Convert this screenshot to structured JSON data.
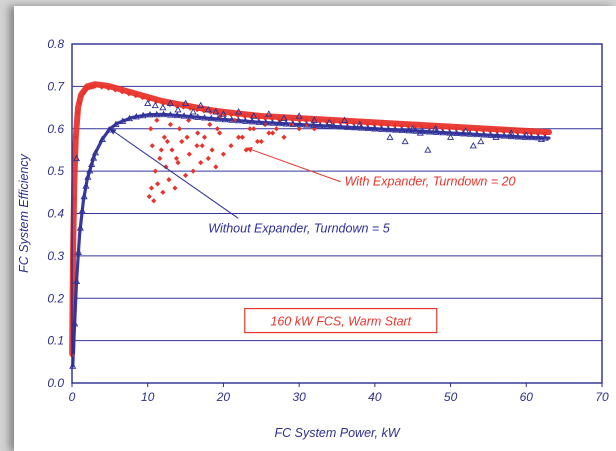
{
  "colors": {
    "plot_border": "#2b2b8f",
    "gridline": "#3434a0",
    "axis_text": "#2e2f8c",
    "with_expander": "#e8352c",
    "without_expander": "#2d2f96",
    "note_border": "#e8352c"
  },
  "chart_data": {
    "type": "scatter",
    "title": "",
    "xlabel": "FC System Power, kW",
    "ylabel": "FC System Efficiency",
    "xlim": [
      0,
      70
    ],
    "ylim": [
      0,
      0.8
    ],
    "xticks": [
      "0",
      "10",
      "20",
      "30",
      "40",
      "50",
      "60",
      "70"
    ],
    "yticks": [
      "0.0",
      "0.1",
      "0.2",
      "0.3",
      "0.4",
      "0.5",
      "0.6",
      "0.7",
      "0.8"
    ],
    "grid": "horizontal",
    "series": [
      {
        "name": "With Expander, Turndown = 20",
        "marker": "diamond",
        "color": "#e8352c",
        "curve": {
          "x": [
            0.02,
            0.08,
            0.15,
            0.3,
            0.5,
            0.8,
            1.2,
            2,
            3,
            4,
            5,
            6,
            8,
            10,
            12,
            15,
            18,
            20,
            25,
            30,
            35,
            40,
            45,
            50,
            55,
            60,
            63
          ],
          "y": [
            0.07,
            0.2,
            0.32,
            0.47,
            0.58,
            0.65,
            0.68,
            0.7,
            0.705,
            0.703,
            0.7,
            0.695,
            0.685,
            0.675,
            0.665,
            0.655,
            0.645,
            0.64,
            0.63,
            0.625,
            0.62,
            0.615,
            0.61,
            0.605,
            0.6,
            0.595,
            0.592
          ]
        },
        "scatter": {
          "x": [
            10.2,
            10.5,
            10.8,
            11,
            11.3,
            11.6,
            12,
            12.4,
            12.8,
            13.2,
            13.6,
            14,
            14.5,
            15,
            15.5,
            16,
            16.5,
            17,
            17.5,
            18,
            18.5,
            19,
            19.5,
            20,
            21,
            22,
            23,
            24,
            25,
            26,
            27,
            28,
            29,
            30,
            31,
            32,
            10.4,
            11.2,
            12.2,
            13,
            14.2,
            15.4,
            16.6,
            18.2,
            19.6,
            21.5,
            23.5,
            25.5,
            27.5,
            10.6,
            11.8,
            12.6,
            13.8,
            15.2,
            17.2,
            19.2,
            22.5,
            24.5,
            26.5
          ],
          "y": [
            0.44,
            0.46,
            0.43,
            0.5,
            0.47,
            0.53,
            0.45,
            0.51,
            0.48,
            0.55,
            0.46,
            0.52,
            0.57,
            0.49,
            0.54,
            0.5,
            0.56,
            0.52,
            0.58,
            0.53,
            0.55,
            0.51,
            0.59,
            0.54,
            0.56,
            0.58,
            0.55,
            0.6,
            0.57,
            0.59,
            0.6,
            0.58,
            0.61,
            0.6,
            0.61,
            0.6,
            0.6,
            0.62,
            0.58,
            0.61,
            0.6,
            0.62,
            0.59,
            0.61,
            0.63,
            0.62,
            0.6,
            0.61,
            0.62,
            0.56,
            0.55,
            0.57,
            0.53,
            0.58,
            0.56,
            0.6,
            0.58,
            0.57,
            0.59
          ]
        }
      },
      {
        "name": "Without Expander, Turndown = 5",
        "marker": "triangle",
        "color": "#2d2f96",
        "curve": {
          "x": [
            0.1,
            0.3,
            0.6,
            1,
            1.5,
            2,
            3,
            4,
            5,
            6,
            8,
            10,
            12,
            15,
            18,
            20,
            25,
            30,
            35,
            40,
            45,
            50,
            55,
            60,
            63
          ],
          "y": [
            0.04,
            0.12,
            0.24,
            0.35,
            0.43,
            0.48,
            0.54,
            0.575,
            0.6,
            0.613,
            0.627,
            0.633,
            0.634,
            0.63,
            0.625,
            0.622,
            0.615,
            0.61,
            0.605,
            0.6,
            0.595,
            0.59,
            0.585,
            0.58,
            0.578
          ]
        },
        "scatter": {
          "x": [
            10,
            11,
            12,
            13,
            14,
            15,
            16,
            17,
            18,
            19,
            20,
            22,
            24,
            26,
            28,
            30,
            32,
            34,
            36,
            38,
            40,
            42,
            44,
            46,
            47,
            48,
            50,
            52,
            54,
            56,
            58,
            60,
            62,
            0.6,
            45,
            53
          ],
          "y": [
            0.66,
            0.655,
            0.65,
            0.66,
            0.645,
            0.66,
            0.64,
            0.655,
            0.645,
            0.64,
            0.635,
            0.64,
            0.63,
            0.635,
            0.625,
            0.63,
            0.62,
            0.615,
            0.62,
            0.61,
            0.6,
            0.58,
            0.57,
            0.59,
            0.55,
            0.6,
            0.58,
            0.595,
            0.57,
            0.58,
            0.59,
            0.585,
            0.575,
            0.53,
            0.6,
            0.56
          ]
        }
      }
    ],
    "annotations": [
      {
        "text": "With Expander, Turndown = 20",
        "x": 36,
        "y": 0.475,
        "arrow_to": [
          23,
          0.555
        ],
        "color": "#e8352c"
      },
      {
        "text": "Without Expander, Turndown = 5",
        "x": 18,
        "y": 0.365,
        "arrow_to": [
          5,
          0.6
        ],
        "color": "#2d2f96"
      }
    ],
    "note": {
      "text": "160 kW FCS, Warm Start",
      "x": 35.5,
      "y": 0.145
    }
  }
}
